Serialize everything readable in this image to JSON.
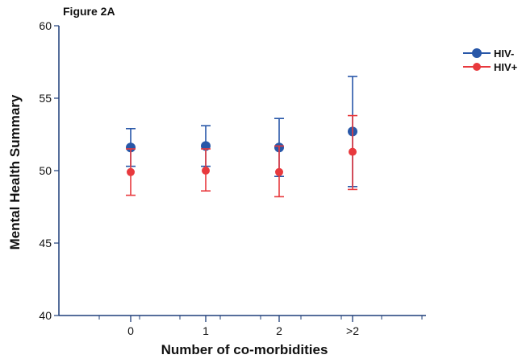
{
  "figure_label": "Figure 2A",
  "colors": {
    "series1": "#2857a8",
    "series2": "#e8393d",
    "axis": "#1f3f7a",
    "text": "#111111"
  },
  "chart_data": {
    "type": "scatter",
    "title": "",
    "xlabel": "Number of co-morbidities",
    "ylabel": "Mental Health Summary",
    "categories": [
      "0",
      "1",
      "2",
      ">2"
    ],
    "ylim": [
      40,
      60
    ],
    "yticks": [
      "40",
      "45",
      "50",
      "55",
      "60"
    ],
    "legend_position": "top-right",
    "grid": false,
    "error_bars": true,
    "series": [
      {
        "name": "HIV-",
        "color": "#2857a8",
        "values": [
          51.6,
          51.7,
          51.6,
          52.7
        ],
        "lower": [
          50.3,
          50.3,
          49.6,
          48.9
        ],
        "upper": [
          52.9,
          53.1,
          53.6,
          56.5
        ]
      },
      {
        "name": "HIV+",
        "color": "#e8393d",
        "values": [
          49.9,
          50.0,
          49.9,
          51.3
        ],
        "lower": [
          48.3,
          48.6,
          48.2,
          48.7
        ],
        "upper": [
          51.5,
          51.5,
          51.7,
          53.8
        ]
      }
    ]
  }
}
